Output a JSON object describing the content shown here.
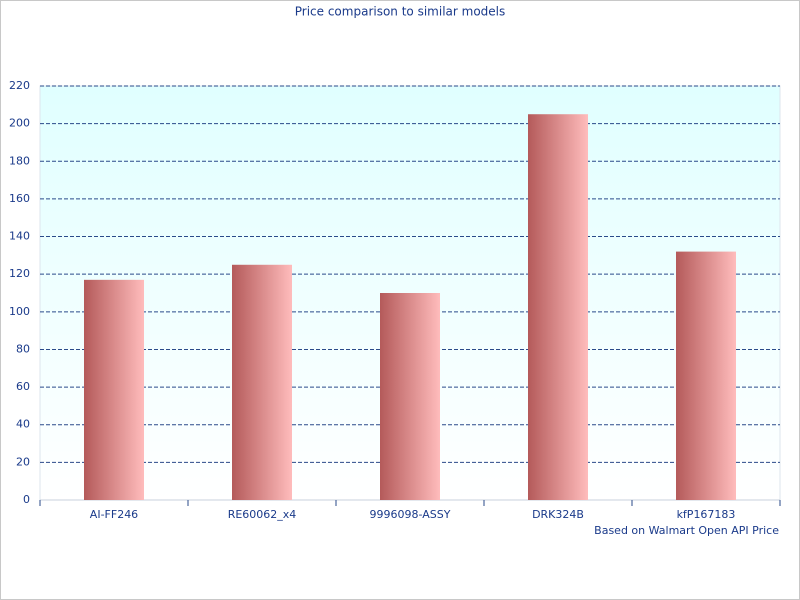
{
  "chart_data": {
    "type": "bar",
    "title": "Price comparison to similar models",
    "categories": [
      "AI-FF246",
      "RE60062_x4",
      "9996098-ASSY",
      "DRK324B",
      "kfP167183"
    ],
    "values": [
      117,
      125,
      110,
      205,
      132
    ],
    "gradient": [
      "#b45a5a",
      "#ffbcbc"
    ],
    "ylim": [
      0,
      220
    ],
    "yticks": [
      0,
      20,
      40,
      60,
      80,
      100,
      120,
      140,
      160,
      180,
      200,
      220
    ],
    "grid": true,
    "annotation": "Based on Walmart Open API Price"
  }
}
